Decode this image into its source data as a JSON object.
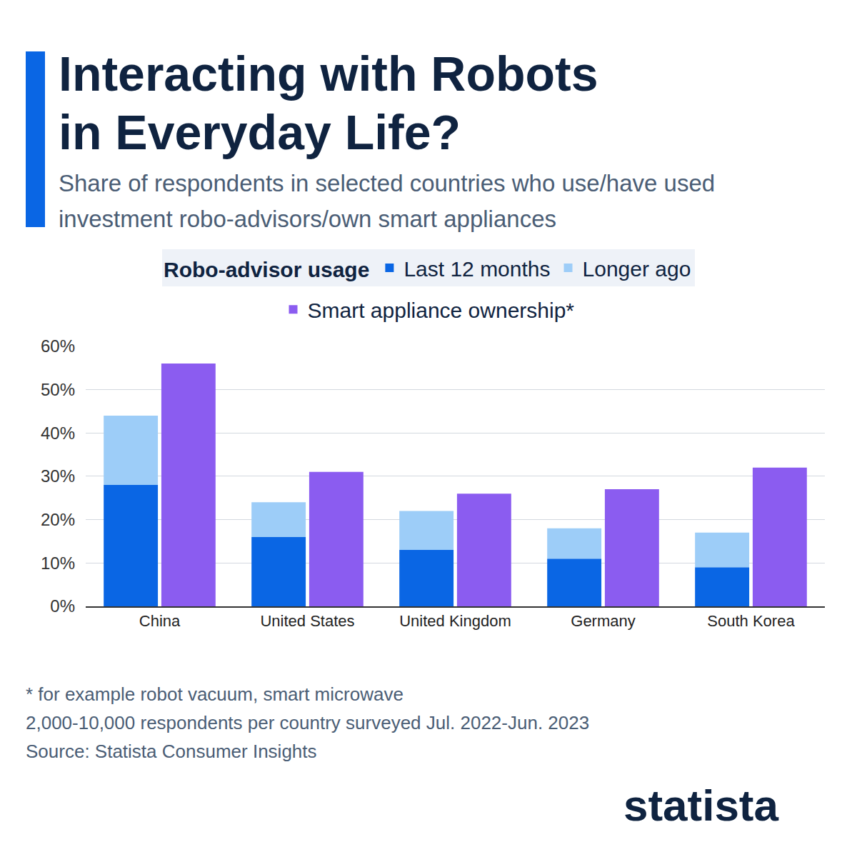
{
  "chart_data": {
    "type": "bar",
    "title": "Interacting with Robots in Everyday Life?",
    "subtitle": "Share of respondents in selected countries who use/have used investment robo-advisors/own smart appliances",
    "categories": [
      "China",
      "United States",
      "United Kingdom",
      "Germany",
      "South Korea"
    ],
    "series": [
      {
        "name": "Robo-advisor usage",
        "series": [
          {
            "name": "Last 12 months",
            "color": "#0a66e4",
            "values": [
              28,
              16,
              13,
              11,
              9
            ]
          },
          {
            "name": "Longer ago",
            "color": "#9dcdf8",
            "values": [
              16,
              8,
              9,
              7,
              8
            ]
          }
        ]
      },
      {
        "name": "Smart appliance ownership*",
        "color": "#8b5cf0",
        "values": [
          56,
          31,
          26,
          27,
          32
        ]
      }
    ],
    "stacked": true,
    "ylim": [
      0,
      60
    ],
    "yticks": [
      {
        "value": 0,
        "label": "0%"
      },
      {
        "value": 10,
        "label": "10%"
      },
      {
        "value": 20,
        "label": "20%"
      },
      {
        "value": 30,
        "label": "30%"
      },
      {
        "value": 40,
        "label": "40%"
      },
      {
        "value": 50,
        "label": "50%"
      },
      {
        "value": 60,
        "label": "60%"
      }
    ],
    "grid": true,
    "legend": "top",
    "notes": [
      "* for example robot vacuum, smart microwave",
      "2,000-10,000 respondents per country surveyed Jul. 2022-Jun. 2023",
      "Source: Statista Consumer Insights"
    ],
    "logo": "statista"
  }
}
